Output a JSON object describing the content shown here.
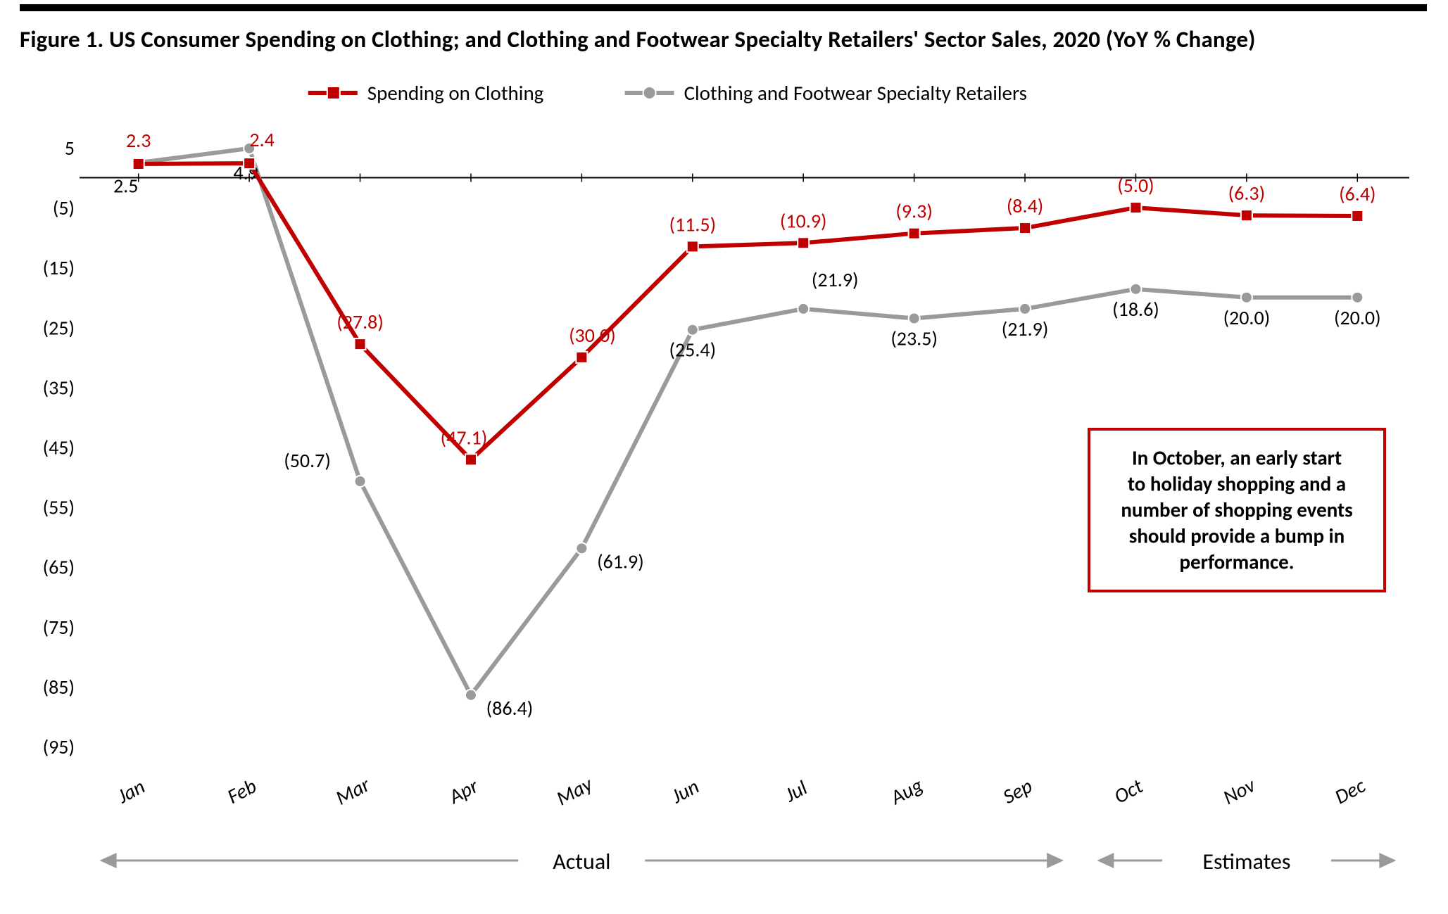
{
  "title": "Figure 1. US Consumer Spending on Clothing; and Clothing and Footwear Specialty Retailers' Sector Sales, 2020 (YoY % Change)",
  "chart": {
    "type": "line",
    "background_color": "#ffffff",
    "font_family": "Calibri",
    "title_fontsize": 33,
    "label_fontsize": 28,
    "months": [
      "Jan",
      "Feb",
      "Mar",
      "Apr",
      "May",
      "Jun",
      "Jul",
      "Aug",
      "Sep",
      "Oct",
      "Nov",
      "Dec"
    ],
    "y_ticks": [
      5,
      -5,
      -15,
      -25,
      -35,
      -45,
      -55,
      -65,
      -75,
      -85,
      -95
    ],
    "y_tick_labels": [
      "5",
      "(5)",
      "(15)",
      "(25)",
      "(35)",
      "(45)",
      "(55)",
      "(65)",
      "(75)",
      "(85)",
      "(95)"
    ],
    "ylim": [
      -95,
      5
    ],
    "legend": {
      "spending": "Spending on Clothing",
      "retailers": "Clothing and Footwear Specialty Retailers"
    },
    "series": {
      "spending": {
        "name": "Spending on Clothing",
        "color": "#c00000",
        "line_width": 6,
        "marker": "square",
        "marker_size": 16,
        "marker_border": "#ffffff",
        "values": [
          2.3,
          2.4,
          -27.8,
          -47.1,
          -30.0,
          -11.5,
          -10.9,
          -9.3,
          -8.4,
          -5.0,
          -6.3,
          -6.4
        ],
        "labels": [
          "2.3",
          "2.4",
          "(27.8)",
          "(47.1)",
          "(30.0)",
          "(11.5)",
          "(10.9)",
          "(9.3)",
          "(8.4)",
          "(5.0)",
          "(6.3)",
          "(6.4)"
        ],
        "label_dy": [
          -24,
          -24,
          -22,
          -22,
          -22,
          -22,
          -22,
          -22,
          -22,
          -22,
          -22,
          -22
        ],
        "label_dx": [
          0,
          18,
          0,
          -10,
          15,
          0,
          0,
          0,
          0,
          0,
          0,
          0
        ]
      },
      "retailers": {
        "name": "Clothing and Footwear Specialty Retailers",
        "color": "#9a9a9a",
        "line_width": 6,
        "marker": "circle",
        "marker_size": 16,
        "marker_border": "#ffffff",
        "values": [
          2.5,
          4.9,
          -50.7,
          -86.4,
          -61.9,
          -25.4,
          -21.9,
          -23.5,
          -21.9,
          -18.6,
          -20.0,
          -20.0
        ],
        "labels": [
          "2.5",
          "4.9",
          "(50.7)",
          "(86.4)",
          "(61.9)",
          "(25.4)",
          "(21.9)",
          "(23.5)",
          "(21.9)",
          "(18.6)",
          "(20.0)",
          "(20.0)"
        ],
        "label_dy": [
          42,
          44,
          0,
          28,
          28,
          38,
          -32,
          38,
          38,
          38,
          38,
          38
        ],
        "label_dx": [
          -18,
          -5,
          -75,
          55,
          55,
          0,
          45,
          0,
          0,
          0,
          0,
          0
        ]
      }
    },
    "ranges": {
      "actual": {
        "label": "Actual",
        "from_index": 0,
        "to_index": 8
      },
      "estimates": {
        "label": "Estimates",
        "from_index": 9,
        "to_index": 11
      }
    },
    "callout": {
      "text": "In October, an early start to holiday shopping and a number of shopping events should provide a bump in performance.",
      "border_color": "#c00000",
      "border_width": 4,
      "text_color": "#000000"
    }
  }
}
